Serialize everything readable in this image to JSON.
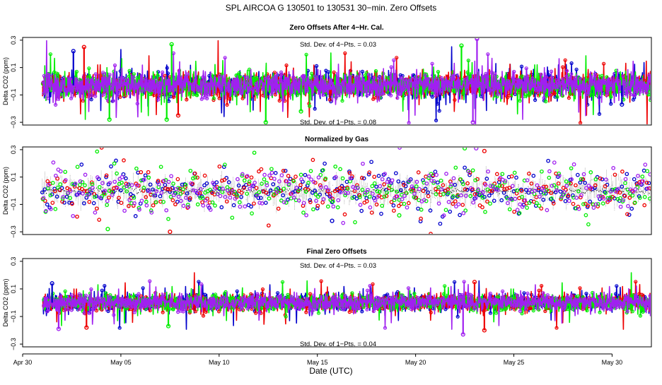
{
  "figure_title": "SPL   AIRCOA G   130501 to 130531   30−min. Zero Offsets",
  "x_axis_label": "Date (UTC)",
  "colors": {
    "blue": "#0000cc",
    "red": "#ee0000",
    "green": "#00ee00",
    "purple": "#a020f0",
    "gray": "#7f7f7f"
  },
  "chart_data": [
    {
      "type": "scatter",
      "title": "Zero Offsets After 4−Hr. Cal.",
      "ylabel": "Delta CO2 (ppm)",
      "xlim": [
        "2013-04-30",
        "2013-06-01"
      ],
      "ylim": [
        -0.32,
        0.32
      ],
      "y_ticks": [
        "0.3",
        "0.1",
        "−0.1",
        "−0.3"
      ],
      "x_ticks": [
        "Apr 30",
        "May 05",
        "May 10",
        "May 15",
        "May 20",
        "May 25",
        "May 30"
      ],
      "notes": [
        "Std. Dev. of 4−Pts. =  0.03",
        "Std. Dev. of 1−Pts. =  0.08"
      ],
      "series_colors": [
        "#0000cc",
        "#ee0000",
        "#00ee00",
        "#a020f0"
      ],
      "start_date": "2013-05-01",
      "end_date": "2013-05-31",
      "sample_interval_min": 30,
      "center_ppm": -0.03,
      "spread_ppm": 0.045,
      "outliers": [
        {
          "date": "2013-05-02 14:00",
          "value": 0.22,
          "color": "#0000cc"
        },
        {
          "date": "2013-05-03 03:00",
          "value": 0.25,
          "color": "#ee0000"
        },
        {
          "date": "2013-05-04 10:00",
          "value": -0.28,
          "color": "#00ee00"
        },
        {
          "date": "2013-05-07 08:00",
          "value": -0.28,
          "color": "#00ee00"
        },
        {
          "date": "2013-05-07 14:00",
          "value": 0.27,
          "color": "#00ee00"
        },
        {
          "date": "2013-05-07 22:00",
          "value": -0.25,
          "color": "#ee0000"
        },
        {
          "date": "2013-05-12 09:00",
          "value": -0.3,
          "color": "#00ee00"
        },
        {
          "date": "2013-05-14 04:00",
          "value": -0.22,
          "color": "#00ee00"
        },
        {
          "date": "2013-05-22 08:00",
          "value": 0.26,
          "color": "#00ee00"
        },
        {
          "date": "2013-05-23 03:00",
          "value": 0.31,
          "color": "#a020f0"
        },
        {
          "date": "2013-05-22 22:00",
          "value": -0.3,
          "color": "#a020f0"
        },
        {
          "date": "2013-05-30 12:00",
          "value": -0.17,
          "color": "#0000cc"
        }
      ]
    },
    {
      "type": "scatter",
      "title": "Normalized by Gas",
      "ylabel": "Delta CO2 (ppm)",
      "xlim": [
        "2013-04-30",
        "2013-06-01"
      ],
      "ylim": [
        -0.32,
        0.32
      ],
      "y_ticks": [
        "0.3",
        "0.1",
        "−0.1",
        "−0.3"
      ],
      "x_ticks": [
        "Apr 30",
        "May 05",
        "May 10",
        "May 15",
        "May 20",
        "May 25",
        "May 30"
      ],
      "series_colors": [
        "#0000cc",
        "#ee0000",
        "#00ee00",
        "#a020f0",
        "#7f7f7f"
      ],
      "start_date": "2013-05-01",
      "end_date": "2013-05-31",
      "sample_interval_min": 30,
      "center_ppm": 0.0,
      "spread_ppm": 0.08,
      "outliers": [
        {
          "date": "2013-05-04 08:00",
          "value": -0.28,
          "color": "#00ee00"
        },
        {
          "date": "2013-05-07 12:00",
          "value": -0.3,
          "color": "#ee0000"
        },
        {
          "date": "2013-05-22 12:00",
          "value": 0.31,
          "color": "#00ee00"
        },
        {
          "date": "2013-05-23 02:00",
          "value": 0.31,
          "color": "#a020f0"
        },
        {
          "date": "2013-05-23 12:00",
          "value": 0.29,
          "color": "#ee0000"
        },
        {
          "date": "2013-05-15 18:00",
          "value": -0.22,
          "color": "#0000cc"
        },
        {
          "date": "2013-05-19 04:00",
          "value": -0.18,
          "color": "#00ee00"
        }
      ]
    },
    {
      "type": "scatter",
      "title": "Final Zero Offsets",
      "ylabel": "Delta CO2 (ppm)",
      "xlim": [
        "2013-04-30",
        "2013-06-01"
      ],
      "ylim": [
        -0.32,
        0.32
      ],
      "y_ticks": [
        "0.3",
        "0.1",
        "−0.1",
        "−0.3"
      ],
      "x_ticks": [
        "Apr 30",
        "May 05",
        "May 10",
        "May 15",
        "May 20",
        "May 25",
        "May 30"
      ],
      "notes": [
        "Std. Dev. of 4−Pts. =  0.03",
        "Std. Dev. of 1−Pts. =  0.04"
      ],
      "series_colors": [
        "#0000cc",
        "#ee0000",
        "#00ee00",
        "#a020f0"
      ],
      "start_date": "2013-05-01",
      "end_date": "2013-05-31",
      "sample_interval_min": 30,
      "center_ppm": 0.0,
      "spread_ppm": 0.03,
      "outliers": [
        {
          "date": "2013-05-01 12:00",
          "value": 0.14,
          "color": "#0000cc"
        },
        {
          "date": "2013-05-01 20:00",
          "value": -0.19,
          "color": "#a020f0"
        },
        {
          "date": "2013-05-03 06:00",
          "value": -0.18,
          "color": "#ee0000"
        },
        {
          "date": "2013-05-07 10:00",
          "value": -0.17,
          "color": "#00ee00"
        },
        {
          "date": "2013-05-22 10:00",
          "value": -0.23,
          "color": "#a020f0"
        },
        {
          "date": "2013-05-23 12:00",
          "value": -0.2,
          "color": "#ee0000"
        },
        {
          "date": "2013-05-23 00:00",
          "value": 0.15,
          "color": "#ee0000"
        }
      ]
    }
  ]
}
